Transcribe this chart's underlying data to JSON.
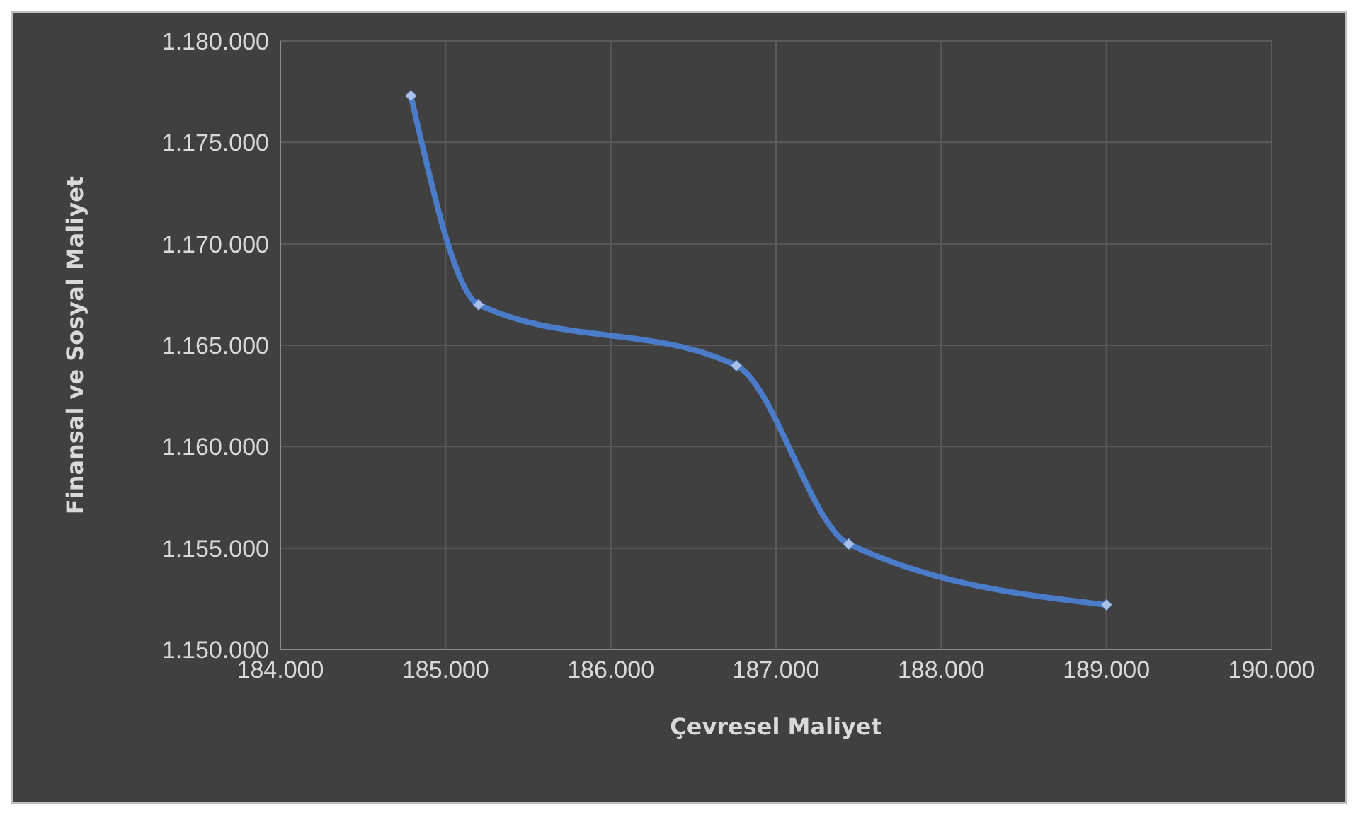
{
  "chart_data": {
    "type": "line",
    "xlabel": "Çevresel Maliyet",
    "ylabel": "Finansal ve Sosyal Maliyet",
    "x": [
      184790,
      185200,
      186760,
      187440,
      189000
    ],
    "series": [
      {
        "color": "#4a7cc9",
        "values": [
          1177300,
          1167000,
          1164000,
          1155200,
          1152200
        ]
      }
    ],
    "xlim": [
      184000,
      190000
    ],
    "xticks": [
      {
        "value": 184000,
        "label": "184.000"
      },
      {
        "value": 185000,
        "label": "185.000"
      },
      {
        "value": 186000,
        "label": "186.000"
      },
      {
        "value": 187000,
        "label": "187.000"
      },
      {
        "value": 188000,
        "label": "188.000"
      },
      {
        "value": 189000,
        "label": "189.000"
      },
      {
        "value": 190000,
        "label": "190.000"
      }
    ],
    "ylim": [
      1150000,
      1180000
    ],
    "yticks": [
      {
        "value": 1150000,
        "label": "1.150.000"
      },
      {
        "value": 1155000,
        "label": "1.155.000"
      },
      {
        "value": 1160000,
        "label": "1.160.000"
      },
      {
        "value": 1165000,
        "label": "1.165.000"
      },
      {
        "value": 1170000,
        "label": "1.170.000"
      },
      {
        "value": 1175000,
        "label": "1.175.000"
      },
      {
        "value": 1180000,
        "label": "1.180.000"
      }
    ],
    "grid": true,
    "marker": "diamond",
    "line_style": "solid"
  }
}
